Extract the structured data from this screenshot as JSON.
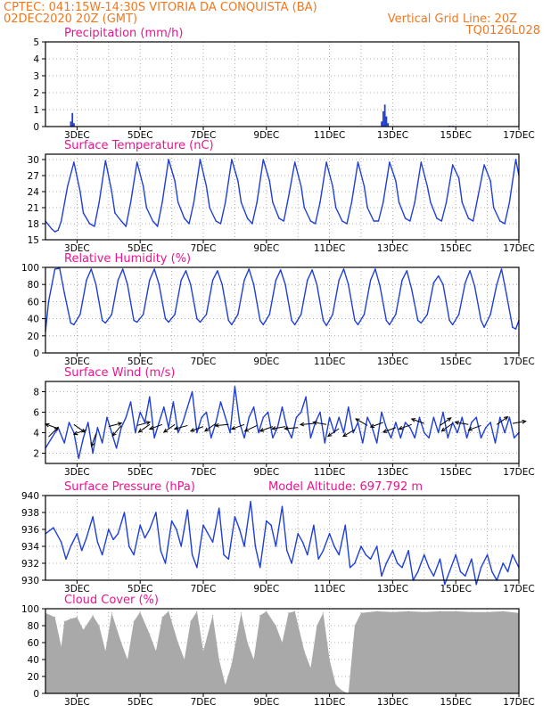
{
  "header": {
    "line1_left": "CPTEC:   041:15W-14:30S   VITORIA DA CONQUISTA (BA)",
    "line2_left": "02DEC2020 20Z (GMT)",
    "line2_right": "Vertical Grid Line: 20Z",
    "line3_right": "TQ0126L028"
  },
  "colors": {
    "header": "#f07820",
    "title": "#e8168c",
    "series": "#1f3fd8",
    "cloud": "#a9a9a9",
    "grid": "#9a9a9a"
  },
  "chart_data": [
    {
      "id": "precip",
      "type": "bar",
      "title": "Precipitation (mm/h)",
      "ylim": [
        0,
        5
      ],
      "yticks": [
        "0",
        "1",
        "2",
        "3",
        "4",
        "5"
      ],
      "x_tick_labels": [
        "3DEC",
        "5DEC",
        "7DEC",
        "9DEC",
        "11DEC",
        "13DEC",
        "15DEC",
        "17DEC"
      ],
      "grid": "dotted",
      "x": [
        0.8,
        0.85,
        0.9,
        10.65,
        10.7,
        10.75,
        10.8,
        10.85,
        12.8,
        12.9,
        13.0
      ],
      "values": [
        0.3,
        0.8,
        0.2,
        0.3,
        0.9,
        1.3,
        0.6,
        0.2,
        0.05,
        0.05,
        0.03
      ]
    },
    {
      "id": "temp",
      "type": "line",
      "title": "Surface Temperature (nC)",
      "ylim": [
        15,
        31
      ],
      "yticks": [
        "15",
        "18",
        "21",
        "24",
        "27",
        "30"
      ],
      "x_tick_labels": [
        "3DEC",
        "5DEC",
        "7DEC",
        "9DEC",
        "11DEC",
        "13DEC",
        "15DEC",
        "17DEC"
      ],
      "x": [
        0.0,
        0.2,
        0.3,
        0.4,
        0.5,
        0.7,
        0.9,
        1.1,
        1.2,
        1.4,
        1.55,
        1.7,
        1.9,
        2.1,
        2.2,
        2.4,
        2.55,
        2.7,
        2.9,
        3.1,
        3.2,
        3.4,
        3.55,
        3.7,
        3.9,
        4.1,
        4.2,
        4.4,
        4.55,
        4.7,
        4.9,
        5.1,
        5.2,
        5.4,
        5.55,
        5.7,
        5.9,
        6.1,
        6.2,
        6.4,
        6.55,
        6.7,
        6.9,
        7.1,
        7.2,
        7.4,
        7.55,
        7.7,
        7.9,
        8.1,
        8.2,
        8.4,
        8.55,
        8.7,
        8.9,
        9.1,
        9.2,
        9.4,
        9.55,
        9.7,
        9.9,
        10.1,
        10.2,
        10.4,
        10.55,
        10.7,
        10.9,
        11.1,
        11.2,
        11.4,
        11.55,
        11.7,
        11.9,
        12.1,
        12.2,
        12.4,
        12.55,
        12.7,
        12.9,
        13.1,
        13.2,
        13.4,
        13.55,
        13.7,
        13.9,
        14.1,
        14.2,
        14.4,
        14.55,
        14.7,
        14.9,
        15.0
      ],
      "values": [
        18.5,
        17.0,
        16.5,
        16.8,
        18.5,
        25,
        29.5,
        24,
        20,
        18,
        17.5,
        22,
        29.8,
        24,
        20,
        18.5,
        17.5,
        22,
        29.5,
        25,
        21,
        18.5,
        17.5,
        22,
        30,
        26,
        22,
        19,
        18,
        22,
        30,
        25,
        21,
        18.5,
        18,
        22,
        30,
        26,
        22,
        19,
        18,
        22,
        30,
        26,
        22,
        19,
        18.5,
        23,
        29.5,
        25,
        21,
        18.5,
        18,
        22,
        29.5,
        25,
        21,
        18.5,
        18,
        22,
        29.5,
        25,
        21,
        18.5,
        18.5,
        22,
        29.5,
        26,
        22,
        19,
        18.5,
        22,
        29.5,
        25,
        22,
        19,
        18.5,
        22,
        29,
        26.5,
        22,
        19,
        18.5,
        23,
        29,
        26,
        21,
        18.5,
        18,
        22,
        30,
        27
      ]
    },
    {
      "id": "rh",
      "type": "line",
      "title": "Relative Humidity (%)",
      "ylim": [
        0,
        100
      ],
      "yticks": [
        "0",
        "20",
        "40",
        "60",
        "80",
        "100"
      ],
      "x_tick_labels": [
        "3DEC",
        "5DEC",
        "7DEC",
        "9DEC",
        "11DEC",
        "13DEC",
        "15DEC",
        "17DEC"
      ],
      "x": [
        0.0,
        0.1,
        0.3,
        0.45,
        0.6,
        0.8,
        0.9,
        1.1,
        1.3,
        1.45,
        1.6,
        1.8,
        1.9,
        2.1,
        2.3,
        2.45,
        2.6,
        2.8,
        2.9,
        3.1,
        3.3,
        3.45,
        3.6,
        3.8,
        3.9,
        4.1,
        4.3,
        4.45,
        4.6,
        4.8,
        4.9,
        5.1,
        5.3,
        5.45,
        5.6,
        5.8,
        5.9,
        6.1,
        6.3,
        6.45,
        6.6,
        6.8,
        6.9,
        7.1,
        7.3,
        7.45,
        7.6,
        7.8,
        7.9,
        8.1,
        8.3,
        8.45,
        8.6,
        8.8,
        8.9,
        9.1,
        9.3,
        9.45,
        9.6,
        9.8,
        9.9,
        10.1,
        10.3,
        10.45,
        10.6,
        10.8,
        10.9,
        11.1,
        11.3,
        11.45,
        11.6,
        11.8,
        11.9,
        12.1,
        12.3,
        12.45,
        12.6,
        12.8,
        12.9,
        13.1,
        13.3,
        13.45,
        13.6,
        13.8,
        13.9,
        14.1,
        14.3,
        14.45,
        14.6,
        14.8,
        14.9,
        15.0
      ],
      "values": [
        25,
        60,
        98,
        99,
        70,
        35,
        33,
        45,
        85,
        98,
        80,
        38,
        35,
        45,
        85,
        98,
        80,
        38,
        36,
        45,
        85,
        98,
        80,
        40,
        36,
        45,
        85,
        96,
        80,
        40,
        36,
        45,
        85,
        96,
        80,
        38,
        33,
        45,
        85,
        98,
        80,
        38,
        33,
        45,
        85,
        97,
        80,
        38,
        33,
        45,
        85,
        97,
        80,
        38,
        32,
        45,
        85,
        98,
        80,
        38,
        33,
        45,
        85,
        98,
        78,
        38,
        33,
        45,
        85,
        96,
        75,
        38,
        35,
        45,
        82,
        90,
        80,
        38,
        33,
        45,
        82,
        96,
        78,
        38,
        30,
        45,
        80,
        98,
        70,
        30,
        28,
        38
      ]
    },
    {
      "id": "wind",
      "type": "line",
      "title": "Surface Wind (m/s)",
      "ylim": [
        1,
        9
      ],
      "yticks": [
        "2",
        "4",
        "6",
        "8"
      ],
      "x_tick_labels": [
        "3DEC",
        "5DEC",
        "7DEC",
        "9DEC",
        "11DEC",
        "13DEC",
        "15DEC",
        "17DEC"
      ],
      "x": [
        0.0,
        0.2,
        0.4,
        0.6,
        0.75,
        0.9,
        1.05,
        1.2,
        1.35,
        1.5,
        1.65,
        1.8,
        1.95,
        2.1,
        2.25,
        2.4,
        2.55,
        2.7,
        2.85,
        3.0,
        3.15,
        3.3,
        3.45,
        3.6,
        3.75,
        3.9,
        4.05,
        4.2,
        4.35,
        4.5,
        4.65,
        4.8,
        4.95,
        5.1,
        5.25,
        5.4,
        5.55,
        5.7,
        5.85,
        6.0,
        6.15,
        6.3,
        6.45,
        6.6,
        6.75,
        6.9,
        7.05,
        7.2,
        7.35,
        7.5,
        7.65,
        7.8,
        7.95,
        8.1,
        8.25,
        8.4,
        8.55,
        8.7,
        8.85,
        9.0,
        9.15,
        9.3,
        9.45,
        9.6,
        9.75,
        9.9,
        10.05,
        10.2,
        10.35,
        10.5,
        10.65,
        10.8,
        10.95,
        11.1,
        11.25,
        11.4,
        11.55,
        11.7,
        11.85,
        12.0,
        12.15,
        12.3,
        12.45,
        12.6,
        12.75,
        12.9,
        13.05,
        13.2,
        13.35,
        13.5,
        13.65,
        13.8,
        13.95,
        14.1,
        14.25,
        14.4,
        14.55,
        14.7,
        14.85,
        15.0
      ],
      "values": [
        2.5,
        3.5,
        4.5,
        3.0,
        5.0,
        4.0,
        1.5,
        3.5,
        5.0,
        2.0,
        4.5,
        3.0,
        5.5,
        4.0,
        2.5,
        4.5,
        5.5,
        7.0,
        4.0,
        6.0,
        5.0,
        7.5,
        3.5,
        5.0,
        6.5,
        4.5,
        7.0,
        4.0,
        5.0,
        6.5,
        8.0,
        4.0,
        5.5,
        6.0,
        3.5,
        5.0,
        7.0,
        5.5,
        4.0,
        8.5,
        5.0,
        3.5,
        5.5,
        6.5,
        4.0,
        5.5,
        6.0,
        3.5,
        4.5,
        6.5,
        4.5,
        3.5,
        5.5,
        6.0,
        7.5,
        3.5,
        5.0,
        6.0,
        3.0,
        5.5,
        4.0,
        5.5,
        4.0,
        6.5,
        4.0,
        5.0,
        3.0,
        5.5,
        4.5,
        3.0,
        6.0,
        4.5,
        3.5,
        5.0,
        3.5,
        5.0,
        4.5,
        3.5,
        5.5,
        4.0,
        3.5,
        5.5,
        4.0,
        6.0,
        3.5,
        5.0,
        4.0,
        5.5,
        3.5,
        5.0,
        5.5,
        3.5,
        4.5,
        5.0,
        3.0,
        5.5,
        4.0,
        5.5,
        3.5,
        4.0
      ],
      "arrows": {
        "x": [
          0.1,
          0.4,
          0.9,
          1.3,
          1.6,
          2.0,
          2.4,
          2.9,
          3.3,
          3.7,
          4.1,
          4.5,
          5.0,
          5.4,
          5.8,
          6.3,
          6.7,
          7.2,
          7.6,
          8.0,
          8.5,
          8.9,
          9.3,
          9.8,
          10.2,
          10.7,
          11.1,
          11.6,
          12.0,
          12.5,
          12.9,
          13.4,
          13.8,
          14.3,
          14.8
        ],
        "y": [
          3.6,
          4.4,
          4.8,
          4.3,
          3.9,
          4.6,
          4.7,
          4.7,
          4.8,
          4.8,
          4.8,
          4.7,
          4.6,
          4.9,
          4.8,
          4.8,
          4.7,
          4.6,
          4.6,
          4.5,
          4.9,
          4.8,
          4.4,
          4.3,
          4.7,
          5.0,
          4.5,
          4.8,
          4.9,
          4.7,
          4.9,
          4.8,
          4.7,
          4.8,
          4.9
        ],
        "dir_deg": [
          45,
          160,
          -35,
          200,
          250,
          15,
          230,
          15,
          215,
          200,
          215,
          195,
          200,
          215,
          185,
          200,
          205,
          200,
          190,
          185,
          185,
          170,
          215,
          210,
          150,
          200,
          200,
          200,
          160,
          35,
          215,
          170,
          200,
          35,
          10
        ]
      }
    },
    {
      "id": "pressure",
      "type": "line",
      "title": "Surface Pressure (hPa)",
      "annotation": "Model Altitude: 697.792 m",
      "ylim": [
        930,
        940
      ],
      "yticks": [
        "930",
        "932",
        "934",
        "936",
        "938",
        "940"
      ],
      "x_tick_labels": [
        "3DEC",
        "5DEC",
        "7DEC",
        "9DEC",
        "11DEC",
        "13DEC",
        "15DEC",
        "17DEC"
      ],
      "x": [
        0.0,
        0.25,
        0.5,
        0.65,
        0.8,
        1.0,
        1.15,
        1.3,
        1.5,
        1.65,
        1.8,
        2.0,
        2.15,
        2.3,
        2.5,
        2.65,
        2.8,
        3.0,
        3.15,
        3.3,
        3.5,
        3.65,
        3.8,
        4.0,
        4.15,
        4.3,
        4.5,
        4.65,
        4.8,
        5.0,
        5.15,
        5.3,
        5.5,
        5.65,
        5.8,
        6.0,
        6.15,
        6.3,
        6.5,
        6.65,
        6.8,
        7.0,
        7.15,
        7.3,
        7.5,
        7.65,
        7.8,
        8.0,
        8.15,
        8.3,
        8.5,
        8.65,
        8.8,
        9.0,
        9.15,
        9.3,
        9.5,
        9.65,
        9.8,
        10.0,
        10.15,
        10.3,
        10.5,
        10.65,
        10.8,
        11.0,
        11.15,
        11.3,
        11.5,
        11.65,
        11.8,
        12.0,
        12.15,
        12.3,
        12.5,
        12.65,
        12.8,
        13.0,
        13.15,
        13.3,
        13.5,
        13.65,
        13.8,
        14.0,
        14.15,
        14.3,
        14.5,
        14.65,
        14.8,
        15.0
      ],
      "values": [
        935.5,
        936.2,
        934.5,
        932.5,
        934.0,
        935.5,
        933.5,
        935.0,
        937.5,
        934.5,
        933.0,
        936.0,
        934.8,
        935.5,
        938.0,
        934.0,
        933.0,
        936.5,
        935.0,
        936.0,
        938.0,
        933.5,
        932.0,
        937.0,
        936.0,
        934.0,
        938.3,
        933.0,
        931.5,
        936.5,
        935.5,
        934.5,
        938.5,
        933.0,
        932.5,
        937.5,
        936.0,
        934.0,
        939.3,
        934.0,
        931.5,
        937.0,
        936.5,
        934.0,
        938.7,
        933.5,
        932.0,
        935.5,
        934.5,
        933.0,
        936.5,
        932.5,
        933.5,
        935.5,
        934.0,
        933.0,
        936.5,
        931.5,
        932.0,
        934.0,
        933.0,
        932.5,
        934.0,
        930.5,
        932.0,
        933.5,
        932.0,
        931.5,
        933.5,
        930.0,
        931.0,
        933.0,
        931.5,
        930.5,
        932.5,
        929.5,
        931.0,
        933.0,
        931.0,
        930.5,
        932.5,
        929.5,
        931.5,
        933.0,
        931.0,
        930.0,
        932.0,
        931.0,
        933.0,
        931.5
      ]
    },
    {
      "id": "cloud",
      "type": "area",
      "title": "Cloud Cover (%)",
      "ylim": [
        0,
        100
      ],
      "yticks": [
        "0",
        "20",
        "40",
        "60",
        "80",
        "100"
      ],
      "x_tick_labels": [
        "3DEC",
        "5DEC",
        "7DEC",
        "9DEC",
        "11DEC",
        "13DEC",
        "15DEC",
        "17DEC"
      ],
      "x": [
        0.0,
        0.3,
        0.5,
        0.6,
        0.8,
        1.0,
        1.2,
        1.5,
        1.7,
        1.9,
        2.1,
        2.4,
        2.6,
        2.8,
        3.0,
        3.3,
        3.5,
        3.7,
        3.9,
        4.2,
        4.4,
        4.6,
        4.8,
        5.0,
        5.3,
        5.5,
        5.7,
        5.9,
        6.2,
        6.4,
        6.6,
        6.8,
        7.0,
        7.3,
        7.5,
        7.7,
        7.9,
        8.2,
        8.4,
        8.6,
        8.8,
        9.0,
        9.2,
        9.4,
        9.6,
        9.8,
        10.0,
        10.5,
        11.0,
        11.5,
        12.0,
        12.5,
        13.0,
        13.5,
        14.0,
        14.5,
        15.0
      ],
      "values": [
        95,
        90,
        55,
        85,
        88,
        90,
        75,
        92,
        80,
        50,
        95,
        60,
        40,
        85,
        96,
        70,
        50,
        90,
        97,
        60,
        40,
        85,
        97,
        50,
        92,
        40,
        10,
        35,
        95,
        60,
        40,
        92,
        97,
        80,
        60,
        95,
        97,
        50,
        30,
        80,
        95,
        40,
        10,
        3,
        0,
        80,
        95,
        97,
        96,
        97,
        96,
        97,
        97,
        96,
        96,
        97,
        95
      ]
    }
  ]
}
